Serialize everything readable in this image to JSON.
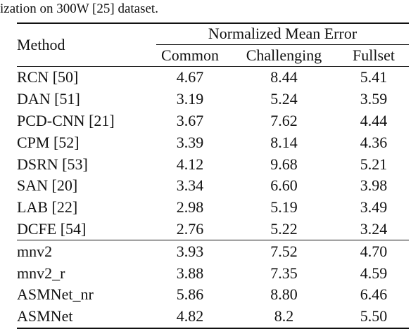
{
  "caption": "ization on 300W [25] dataset.",
  "table": {
    "method_header": "Method",
    "group_header": "Normalized Mean Error",
    "columns": [
      "Common",
      "Challenging",
      "Fullset"
    ],
    "group1": [
      {
        "method": "RCN [50]",
        "common": "4.67",
        "challenging": "8.44",
        "fullset": "5.41"
      },
      {
        "method": "DAN [51]",
        "common": "3.19",
        "challenging": "5.24",
        "fullset": "3.59"
      },
      {
        "method": "PCD-CNN [21]",
        "common": "3.67",
        "challenging": "7.62",
        "fullset": "4.44"
      },
      {
        "method": "CPM [52]",
        "common": "3.39",
        "challenging": "8.14",
        "fullset": "4.36"
      },
      {
        "method": "DSRN [53]",
        "common": "4.12",
        "challenging": "9.68",
        "fullset": "5.21"
      },
      {
        "method": "SAN [20]",
        "common": "3.34",
        "challenging": "6.60",
        "fullset": "3.98"
      },
      {
        "method": "LAB [22]",
        "common": "2.98",
        "challenging": "5.19",
        "fullset": "3.49"
      },
      {
        "method": "DCFE [54]",
        "common": "2.76",
        "challenging": "5.22",
        "fullset": "3.24"
      }
    ],
    "group2": [
      {
        "method": "mnv2",
        "common": "3.93",
        "challenging": "7.52",
        "fullset": "4.70"
      },
      {
        "method": "mnv2_r",
        "common": "3.88",
        "challenging": "7.35",
        "fullset": "4.59"
      },
      {
        "method": "ASMNet_nr",
        "common": "5.86",
        "challenging": "8.80",
        "fullset": "6.46"
      },
      {
        "method": "ASMNet",
        "common": "4.82",
        "challenging": "8.2",
        "fullset": "5.50"
      }
    ]
  }
}
